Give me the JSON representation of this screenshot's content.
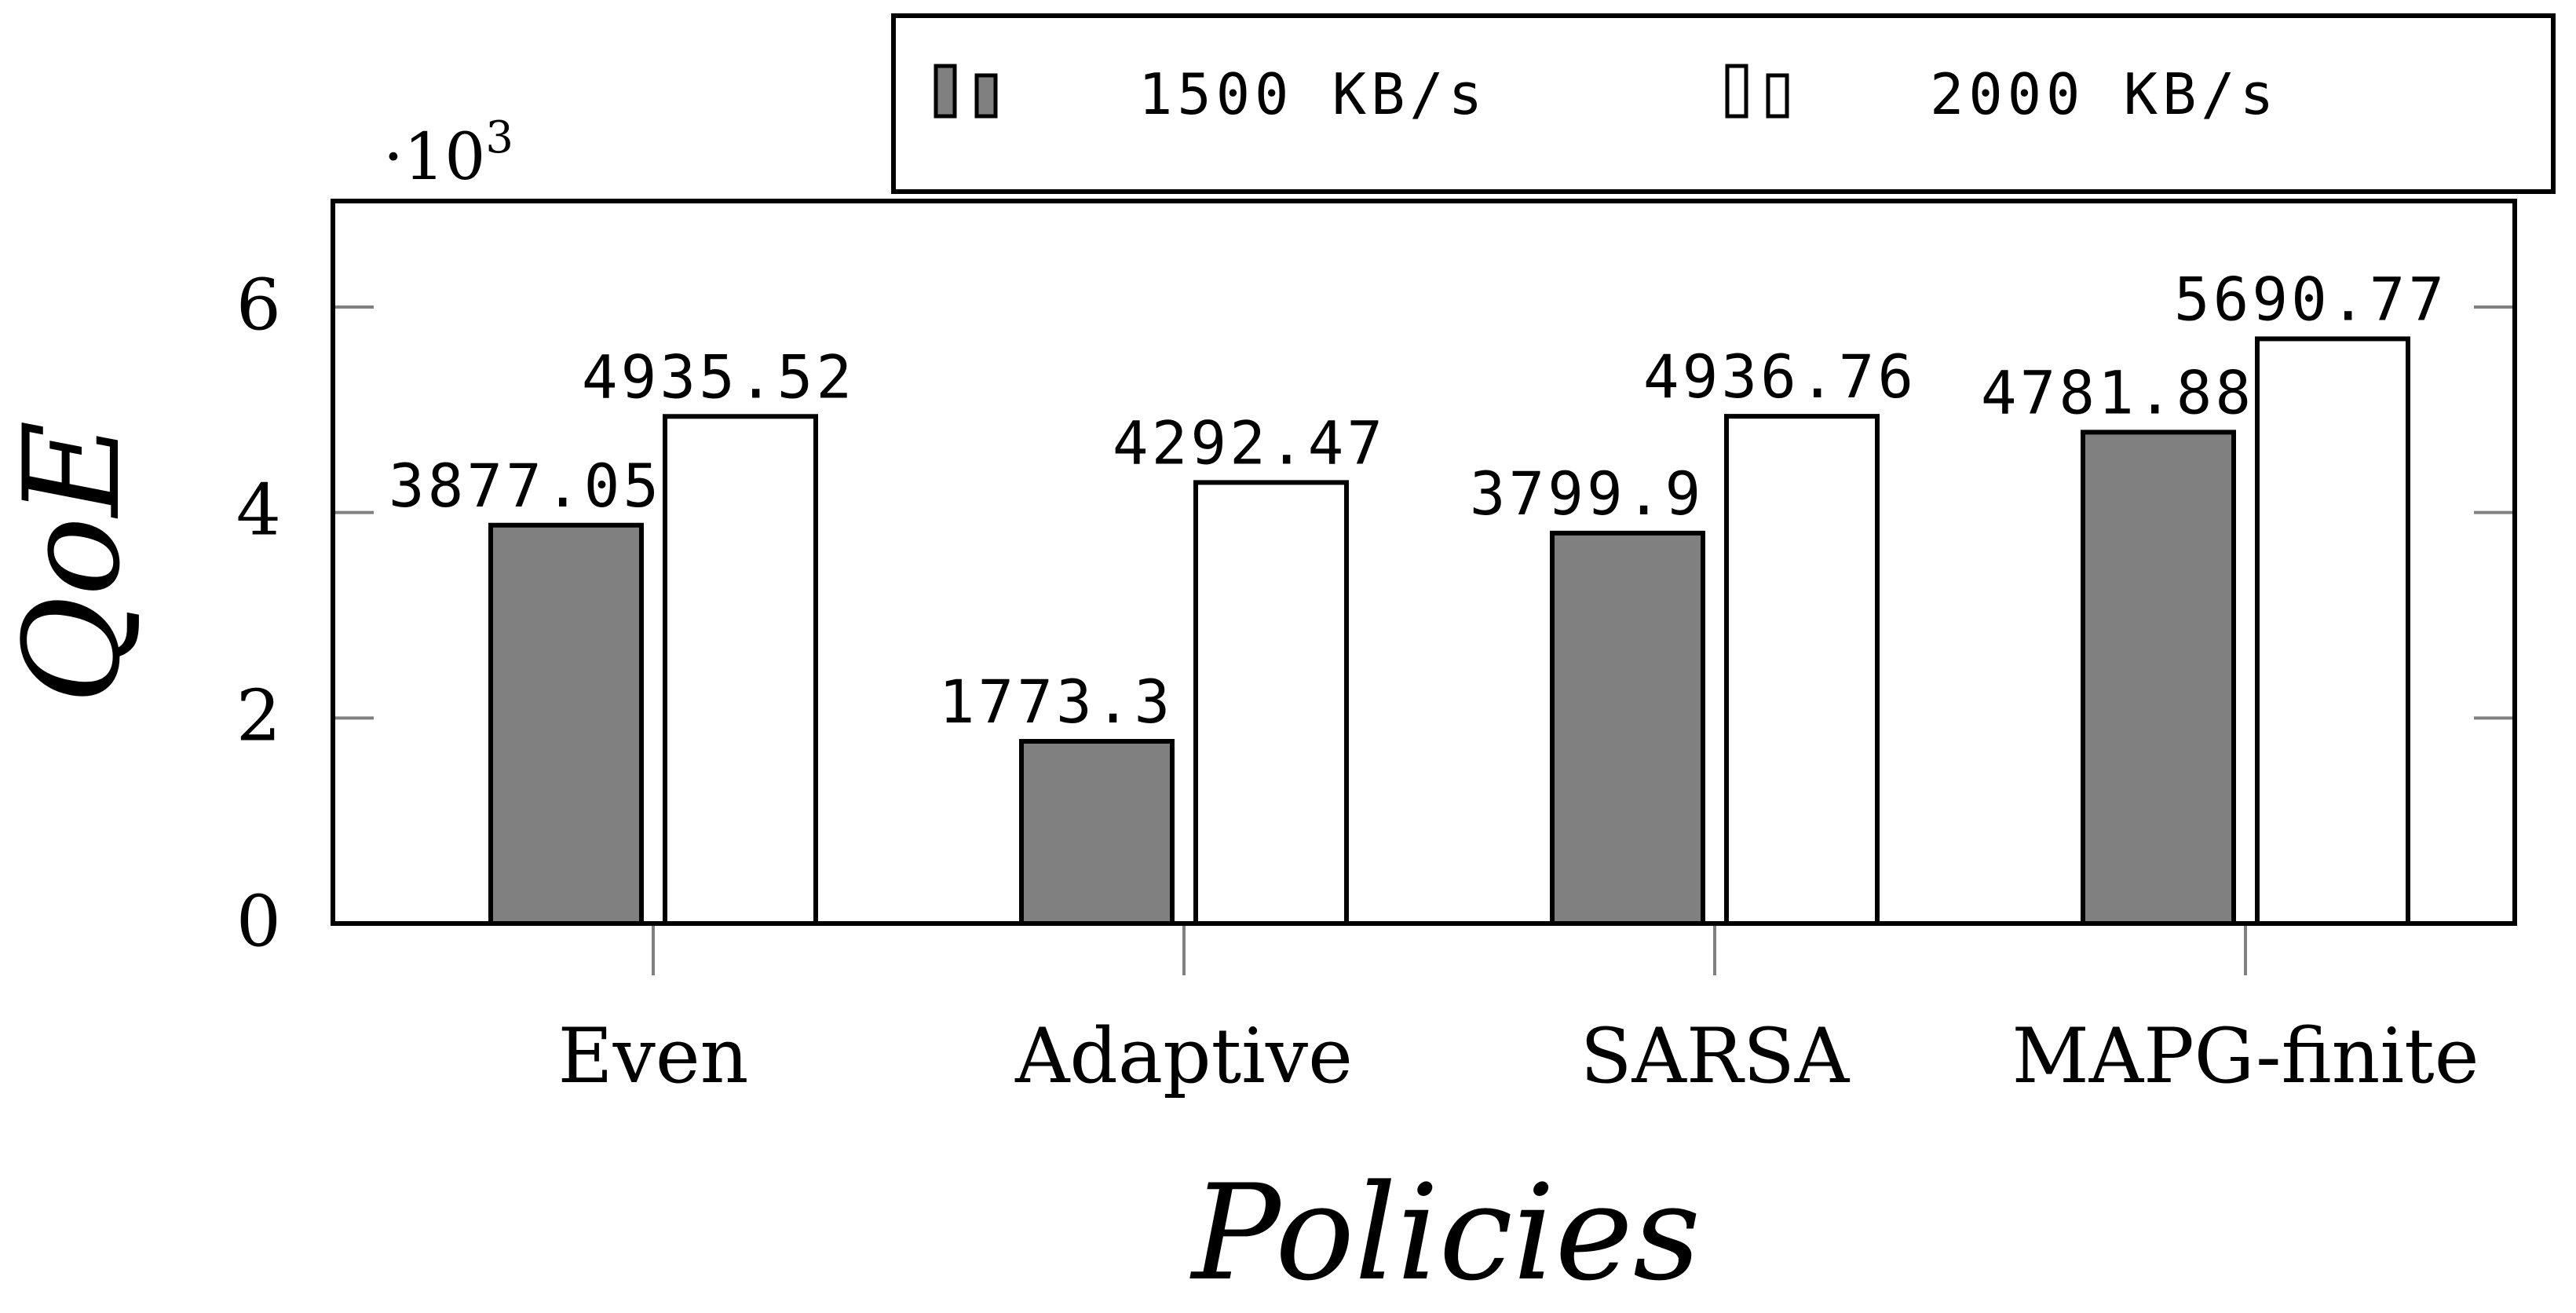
{
  "chart_data": {
    "type": "bar",
    "categories": [
      "Even",
      "Adaptive",
      "SARSA",
      "MAPG-finite"
    ],
    "series": [
      {
        "name": "1500 KB/s",
        "legend_label": "1500 KB/s",
        "color": "#808080",
        "values": [
          3877.05,
          1773.3,
          3799.9,
          4781.88
        ],
        "labels": [
          "3877.05",
          "1773.3",
          "3799.9",
          "4781.88"
        ]
      },
      {
        "name": "2000 KB/s",
        "legend_label": "2000 KB/s",
        "color": "#ffffff",
        "values": [
          4935.52,
          4292.47,
          4936.76,
          5690.77
        ],
        "labels": [
          "4935.52",
          "4292.47",
          "4936.76",
          "5690.77"
        ]
      }
    ],
    "title": "",
    "xlabel": "Policies",
    "ylabel": "QoE",
    "yscale_label": "·10",
    "yscale_exponent": "3",
    "ylim": [
      0,
      7000
    ],
    "yticks": [
      0,
      2000,
      4000,
      6000
    ],
    "ytick_labels": [
      "0",
      "2",
      "4",
      "6"
    ],
    "legend_position": "top-right-above"
  }
}
